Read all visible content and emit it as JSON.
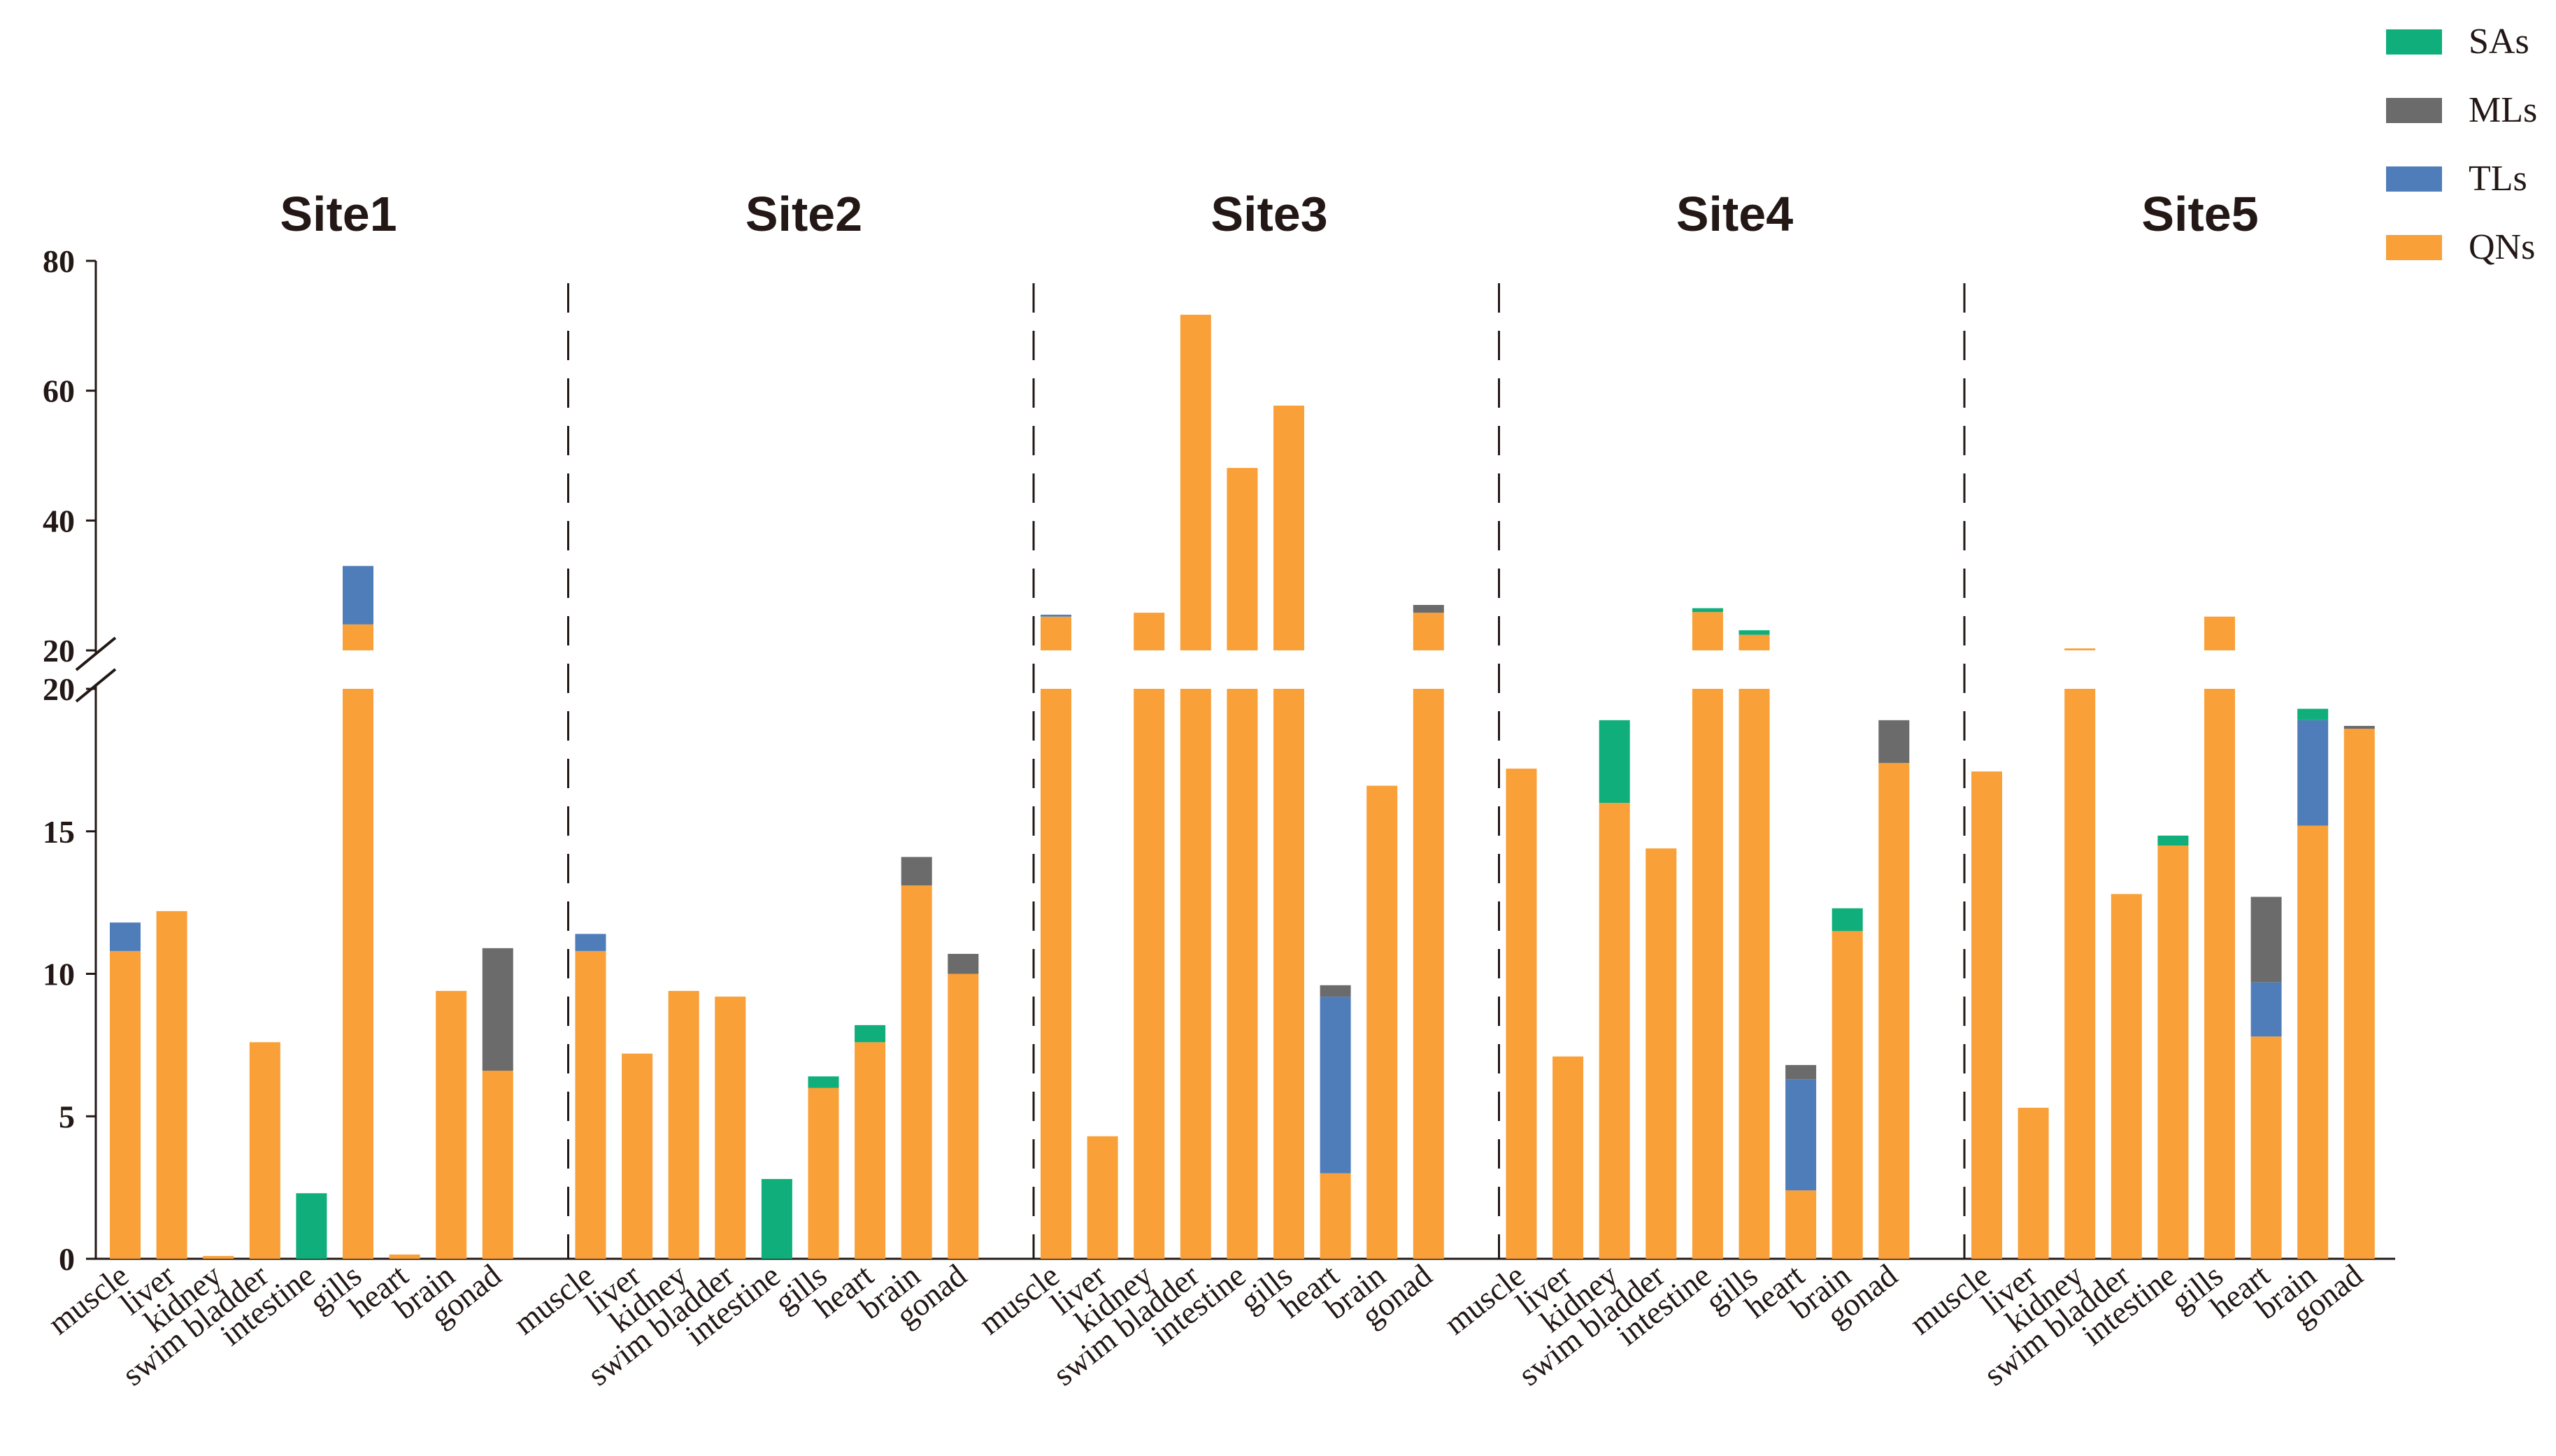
{
  "chart_data": {
    "type": "bar",
    "stacked": true,
    "title": "",
    "xlabel": "",
    "ylabel": "",
    "y_break": {
      "lower_range": [
        0,
        20
      ],
      "upper_range": [
        20,
        80
      ]
    },
    "y_ticks_lower": [
      "0",
      "5",
      "10",
      "15",
      "20"
    ],
    "y_ticks_upper": [
      "20",
      "40",
      "60",
      "80"
    ],
    "legend_position": "top-right",
    "colors": {
      "QNs": "#F9A038",
      "TLs": "#4F7DB9",
      "MLs": "#6B6B6B",
      "SAs": "#0FAE7A"
    },
    "legend": [
      "SAs",
      "MLs",
      "TLs",
      "QNs"
    ],
    "categories": [
      "muscle",
      "liver",
      "kidney",
      "swim bladder",
      "intestine",
      "gills",
      "heart",
      "brain",
      "gonad"
    ],
    "sites": [
      {
        "name": "Site1",
        "series": [
          {
            "name": "QNs",
            "values": [
              10.8,
              12.2,
              0.1,
              7.6,
              0,
              24,
              0.15,
              9.4,
              6.6
            ]
          },
          {
            "name": "TLs",
            "values": [
              1.0,
              0,
              0,
              0,
              0,
              9,
              0,
              0,
              0
            ]
          },
          {
            "name": "MLs",
            "values": [
              0,
              0,
              0,
              0,
              0,
              0,
              0,
              0,
              4.3
            ]
          },
          {
            "name": "SAs",
            "values": [
              0,
              0,
              0,
              0,
              2.3,
              0,
              0,
              0,
              0
            ]
          }
        ]
      },
      {
        "name": "Site2",
        "series": [
          {
            "name": "QNs",
            "values": [
              10.8,
              7.2,
              9.4,
              9.2,
              0,
              6.0,
              7.6,
              13.1,
              10.0
            ]
          },
          {
            "name": "TLs",
            "values": [
              0.6,
              0,
              0,
              0,
              0,
              0,
              0,
              0,
              0
            ]
          },
          {
            "name": "MLs",
            "values": [
              0,
              0,
              0,
              0,
              0,
              0,
              0,
              1.0,
              0.7
            ]
          },
          {
            "name": "SAs",
            "values": [
              0,
              0,
              0,
              0,
              2.8,
              0.4,
              0.6,
              0,
              0
            ]
          }
        ]
      },
      {
        "name": "Site3",
        "series": [
          {
            "name": "QNs",
            "values": [
              25.2,
              4.3,
              25.8,
              71.7,
              48.1,
              57.7,
              3.0,
              16.6,
              25.8
            ]
          },
          {
            "name": "TLs",
            "values": [
              0.3,
              0,
              0,
              0,
              0,
              0,
              6.2,
              0,
              0
            ]
          },
          {
            "name": "MLs",
            "values": [
              0,
              0,
              0,
              0,
              0,
              0,
              0.4,
              0,
              1.2
            ]
          },
          {
            "name": "SAs",
            "values": [
              0,
              0,
              0,
              0,
              0,
              0,
              0,
              0,
              0
            ]
          }
        ]
      },
      {
        "name": "Site4",
        "series": [
          {
            "name": "QNs",
            "values": [
              17.2,
              7.1,
              16.0,
              14.4,
              25.9,
              22.4,
              2.4,
              11.5,
              17.4
            ]
          },
          {
            "name": "TLs",
            "values": [
              0,
              0,
              0,
              0,
              0,
              0,
              3.9,
              0,
              0
            ]
          },
          {
            "name": "MLs",
            "values": [
              0,
              0,
              0,
              0,
              0,
              0,
              0.5,
              0,
              1.5
            ]
          },
          {
            "name": "SAs",
            "values": [
              0,
              0,
              2.9,
              0,
              0.6,
              0.7,
              0,
              0.8,
              0
            ]
          }
        ]
      },
      {
        "name": "Site5",
        "series": [
          {
            "name": "QNs",
            "values": [
              17.1,
              5.3,
              20.3,
              12.8,
              14.5,
              25.2,
              7.8,
              15.2,
              18.6
            ]
          },
          {
            "name": "TLs",
            "values": [
              0,
              0,
              0,
              0,
              0,
              0,
              1.9,
              3.7,
              0
            ]
          },
          {
            "name": "MLs",
            "values": [
              0,
              0,
              0,
              0,
              0,
              0,
              3.0,
              0,
              0.1
            ]
          },
          {
            "name": "SAs",
            "values": [
              0,
              0,
              0,
              0,
              0.35,
              0,
              0,
              0.4,
              0
            ]
          }
        ]
      }
    ]
  }
}
